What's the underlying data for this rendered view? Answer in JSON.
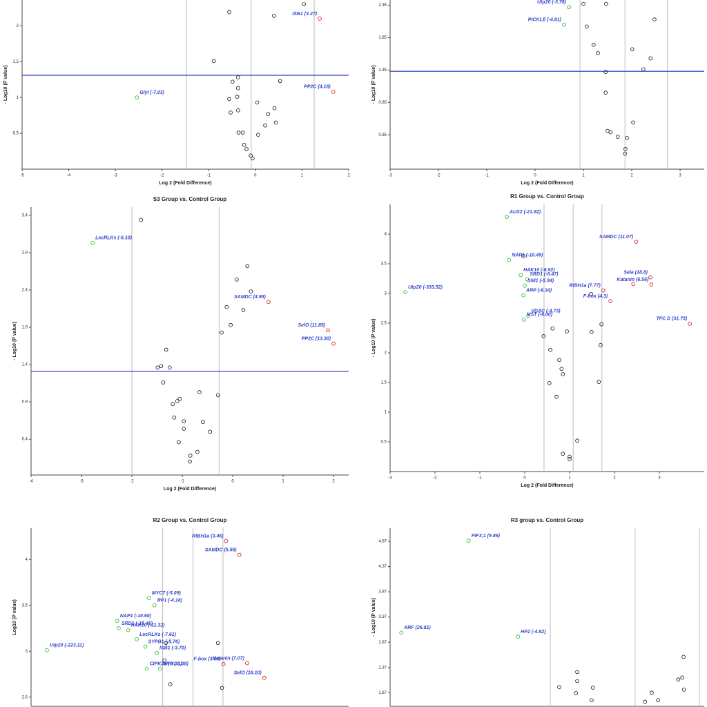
{
  "chart_data": [
    {
      "type": "scatter",
      "xlabel": "Log 2 (Fold Difference)",
      "ylabel": "- Log10 (P value)",
      "xlim": [
        -5,
        2
      ],
      "ylim": [
        0,
        2.36
      ],
      "xticks": [
        -5,
        -4,
        -3,
        -2,
        -1,
        0,
        1,
        2
      ],
      "yticks": [
        0.5,
        1,
        1.5,
        2
      ],
      "vlines": [
        -1.48,
        -0.09,
        1.26
      ],
      "hline": 1.31,
      "points": [
        {
          "x": -0.56,
          "y": 2.19,
          "color": "black"
        },
        {
          "x": 0.4,
          "y": 2.14,
          "color": "black"
        },
        {
          "x": 1.04,
          "y": 2.3,
          "color": "black"
        },
        {
          "x": 1.38,
          "y": 2.1,
          "color": "red",
          "label": "ISB1 (3.27)"
        },
        {
          "x": -0.89,
          "y": 1.51,
          "color": "black"
        },
        {
          "x": -0.37,
          "y": 1.28,
          "color": "black"
        },
        {
          "x": -0.49,
          "y": 1.22,
          "color": "black"
        },
        {
          "x": -0.37,
          "y": 1.13,
          "color": "black"
        },
        {
          "x": -0.39,
          "y": 1.01,
          "color": "black"
        },
        {
          "x": 0.53,
          "y": 1.23,
          "color": "black"
        },
        {
          "x": -0.56,
          "y": 0.98,
          "color": "black"
        },
        {
          "x": 0.04,
          "y": 0.93,
          "color": "black"
        },
        {
          "x": -0.53,
          "y": 0.79,
          "color": "black"
        },
        {
          "x": -0.37,
          "y": 0.82,
          "color": "black"
        },
        {
          "x": 0.41,
          "y": 0.85,
          "color": "black"
        },
        {
          "x": 0.27,
          "y": 0.77,
          "color": "black"
        },
        {
          "x": 0.44,
          "y": 0.65,
          "color": "black"
        },
        {
          "x": 0.21,
          "y": 0.61,
          "color": "black"
        },
        {
          "x": -0.36,
          "y": 0.51,
          "color": "black"
        },
        {
          "x": -0.27,
          "y": 0.51,
          "color": "black"
        },
        {
          "x": 0.06,
          "y": 0.48,
          "color": "black"
        },
        {
          "x": -0.24,
          "y": 0.34,
          "color": "black"
        },
        {
          "x": -0.19,
          "y": 0.28,
          "color": "black"
        },
        {
          "x": -0.1,
          "y": 0.19,
          "color": "black"
        },
        {
          "x": -0.06,
          "y": 0.15,
          "color": "black"
        },
        {
          "x": -2.54,
          "y": 1.0,
          "color": "green",
          "label": "Glyl (-7.03)"
        },
        {
          "x": 1.67,
          "y": 1.08,
          "color": "red",
          "label": "PP2C (4.16)"
        }
      ]
    },
    {
      "type": "scatter",
      "xlabel": "Log 2 (Fold Difference)",
      "ylabel": "- Log10 (P value)",
      "xlim": [
        -3,
        3.5
      ],
      "ylim": [
        -0.18,
        2.43
      ],
      "xticks": [
        -3,
        -2,
        -1,
        0,
        1,
        2,
        3
      ],
      "yticks": [
        0.35,
        0.85,
        1.35,
        1.85,
        2.35
      ],
      "vlines": [
        0.93,
        1.86,
        2.74
      ],
      "hline": 1.33,
      "points": [
        {
          "x": 1.0,
          "y": 2.37,
          "color": "black"
        },
        {
          "x": 1.47,
          "y": 2.37,
          "color": "black"
        },
        {
          "x": 2.47,
          "y": 2.13,
          "color": "black"
        },
        {
          "x": 1.07,
          "y": 2.02,
          "color": "black"
        },
        {
          "x": 1.21,
          "y": 1.74,
          "color": "black"
        },
        {
          "x": 1.3,
          "y": 1.61,
          "color": "black"
        },
        {
          "x": 2.01,
          "y": 1.67,
          "color": "black"
        },
        {
          "x": 2.39,
          "y": 1.53,
          "color": "black"
        },
        {
          "x": 2.24,
          "y": 1.36,
          "color": "black"
        },
        {
          "x": 1.46,
          "y": 1.32,
          "color": "black"
        },
        {
          "x": 1.46,
          "y": 1.0,
          "color": "black"
        },
        {
          "x": 2.03,
          "y": 0.54,
          "color": "black"
        },
        {
          "x": 1.5,
          "y": 0.41,
          "color": "black"
        },
        {
          "x": 1.56,
          "y": 0.39,
          "color": "black"
        },
        {
          "x": 1.71,
          "y": 0.32,
          "color": "black"
        },
        {
          "x": 1.9,
          "y": 0.3,
          "color": "black"
        },
        {
          "x": 1.87,
          "y": 0.13,
          "color": "black"
        },
        {
          "x": 1.86,
          "y": 0.06,
          "color": "black"
        },
        {
          "x": 0.7,
          "y": 2.32,
          "color": "green",
          "label": "Utp20 (-3.78)"
        },
        {
          "x": 0.6,
          "y": 2.05,
          "color": "green",
          "label": "PICKLE (-4.61)"
        }
      ]
    },
    {
      "type": "scatter",
      "title": "S3 Group  vs. Control Group",
      "xlabel": "Log 2 (Fold Difference)",
      "ylabel": "- Log10 (P value)",
      "xlim": [
        -4,
        2.3
      ],
      "ylim": [
        -0.08,
        3.51
      ],
      "xticks": [
        -4,
        -3,
        -2,
        -1,
        0,
        1,
        2
      ],
      "yticks": [
        0.4,
        0.9,
        1.4,
        1.9,
        2.4,
        2.9,
        3.4
      ],
      "vlines": [
        -2,
        -0.27
      ],
      "hline": 1.31,
      "points": [
        {
          "x": -1.82,
          "y": 3.34,
          "color": "black"
        },
        {
          "x": 0.29,
          "y": 2.72,
          "color": "black"
        },
        {
          "x": 0.08,
          "y": 2.54,
          "color": "black"
        },
        {
          "x": 0.36,
          "y": 2.38,
          "color": "black"
        },
        {
          "x": -0.12,
          "y": 2.17,
          "color": "black"
        },
        {
          "x": 0.21,
          "y": 2.13,
          "color": "black"
        },
        {
          "x": -0.04,
          "y": 1.93,
          "color": "black"
        },
        {
          "x": -0.22,
          "y": 1.83,
          "color": "black"
        },
        {
          "x": -1.32,
          "y": 1.6,
          "color": "black"
        },
        {
          "x": -1.25,
          "y": 1.36,
          "color": "black"
        },
        {
          "x": -1.49,
          "y": 1.36,
          "color": "black"
        },
        {
          "x": -1.42,
          "y": 1.38,
          "color": "black"
        },
        {
          "x": -1.38,
          "y": 1.16,
          "color": "black"
        },
        {
          "x": -0.66,
          "y": 1.03,
          "color": "black"
        },
        {
          "x": -0.29,
          "y": 0.99,
          "color": "black"
        },
        {
          "x": -1.05,
          "y": 0.94,
          "color": "black"
        },
        {
          "x": -1.1,
          "y": 0.91,
          "color": "black"
        },
        {
          "x": -1.19,
          "y": 0.87,
          "color": "black"
        },
        {
          "x": -1.16,
          "y": 0.69,
          "color": "black"
        },
        {
          "x": -0.97,
          "y": 0.64,
          "color": "black"
        },
        {
          "x": -0.59,
          "y": 0.63,
          "color": "black"
        },
        {
          "x": -0.45,
          "y": 0.5,
          "color": "black"
        },
        {
          "x": -0.97,
          "y": 0.54,
          "color": "black"
        },
        {
          "x": -1.07,
          "y": 0.36,
          "color": "black"
        },
        {
          "x": -0.7,
          "y": 0.23,
          "color": "black"
        },
        {
          "x": -0.84,
          "y": 0.18,
          "color": "black"
        },
        {
          "x": -0.85,
          "y": 0.1,
          "color": "black"
        },
        {
          "x": -2.78,
          "y": 3.03,
          "color": "green",
          "label": "LecRLKs (-5.10)"
        },
        {
          "x": 0.71,
          "y": 2.24,
          "color": "red",
          "label": "SAMDC (4.95)"
        },
        {
          "x": 1.89,
          "y": 1.86,
          "color": "red",
          "label": "SelO (11.85)"
        },
        {
          "x": 2.0,
          "y": 1.68,
          "color": "red",
          "label": "PP2C (13.30)"
        }
      ]
    },
    {
      "type": "scatter",
      "title": "R1 Group  vs. Control Group",
      "xlabel": "Log 2 (Fold Difference)",
      "ylabel": "- Log10 (P value)",
      "xlim": [
        -3,
        4
      ],
      "ylim": [
        0,
        4.5
      ],
      "xticks": [
        -3,
        -2,
        -1,
        0,
        1,
        2,
        3
      ],
      "yticks": [
        0.5,
        1,
        1.5,
        2,
        2.5,
        3,
        3.5,
        4
      ],
      "vlines": [
        0.43,
        1.08,
        1.72
      ],
      "points": [
        {
          "x": -0.03,
          "y": 3.63,
          "color": "black"
        },
        {
          "x": 0.62,
          "y": 2.41,
          "color": "black"
        },
        {
          "x": 0.94,
          "y": 2.36,
          "color": "black"
        },
        {
          "x": 0.42,
          "y": 2.28,
          "color": "black"
        },
        {
          "x": 0.57,
          "y": 2.05,
          "color": "black"
        },
        {
          "x": 0.77,
          "y": 1.88,
          "color": "black"
        },
        {
          "x": 0.82,
          "y": 1.73,
          "color": "black"
        },
        {
          "x": 0.85,
          "y": 1.64,
          "color": "black"
        },
        {
          "x": 0.55,
          "y": 1.49,
          "color": "black"
        },
        {
          "x": 0.71,
          "y": 1.26,
          "color": "black"
        },
        {
          "x": 1.17,
          "y": 0.52,
          "color": "black"
        },
        {
          "x": 0.85,
          "y": 0.3,
          "color": "black"
        },
        {
          "x": 1.0,
          "y": 0.25,
          "color": "black"
        },
        {
          "x": 1.0,
          "y": 0.21,
          "color": "black"
        },
        {
          "x": 1.48,
          "y": 2.99,
          "color": "black"
        },
        {
          "x": 1.49,
          "y": 2.35,
          "color": "black"
        },
        {
          "x": 1.71,
          "y": 2.48,
          "color": "black"
        },
        {
          "x": 1.69,
          "y": 2.13,
          "color": "black"
        },
        {
          "x": 1.65,
          "y": 1.51,
          "color": "black"
        },
        {
          "x": -0.4,
          "y": 4.29,
          "color": "green",
          "label": "AUX2 (-21.62)"
        },
        {
          "x": -0.35,
          "y": 3.56,
          "color": "green",
          "label": "NAP1 (-10.49)"
        },
        {
          "x": -0.09,
          "y": 3.31,
          "color": "green",
          "label": "HAK10 (-6.92)"
        },
        {
          "x": 0.05,
          "y": 3.24,
          "color": "green",
          "label": "SRD1 (-6.47)"
        },
        {
          "x": 0.0,
          "y": 3.13,
          "color": "green",
          "label": "SNI1 (-5.94)"
        },
        {
          "x": -0.03,
          "y": 2.97,
          "color": "green",
          "label": "ARP (-6.34)"
        },
        {
          "x": 0.08,
          "y": 2.62,
          "color": "green",
          "label": "VDAC (-4.73)"
        },
        {
          "x": -0.02,
          "y": 2.56,
          "color": "green",
          "label": "MST (-6.00)"
        },
        {
          "x": -2.66,
          "y": 3.02,
          "color": "green",
          "label": "Utp20 (-333.52)"
        },
        {
          "x": 2.48,
          "y": 3.87,
          "color": "red",
          "label": "SAMDC (11.07)"
        },
        {
          "x": 2.8,
          "y": 3.27,
          "color": "red",
          "label": "Sela (18.8)"
        },
        {
          "x": 2.82,
          "y": 3.15,
          "color": "red",
          "label": "Katanin (6.56)"
        },
        {
          "x": 1.75,
          "y": 3.05,
          "color": "red",
          "label": "RtBH1a (7.77)"
        },
        {
          "x": 1.91,
          "y": 2.87,
          "color": "red",
          "label": "F-box (4.3)"
        },
        {
          "x": 3.68,
          "y": 2.49,
          "color": "red",
          "label": "TFC D (31.75)"
        },
        {
          "x": 2.42,
          "y": 3.16,
          "color": "red"
        }
      ]
    },
    {
      "type": "scatter",
      "title": "R2 Group  vs. Control Group",
      "ylabel": "Log10 (P value)",
      "xlim": [
        -4,
        3
      ],
      "ylim": [
        2.4,
        4.34
      ],
      "yticks": [
        2.5,
        3,
        3.5,
        4
      ],
      "vlines": [
        -1.1,
        -0.43,
        0.23
      ],
      "points": [
        {
          "x": -1.03,
          "y": 3.09,
          "color": "black"
        },
        {
          "x": 0.12,
          "y": 3.09,
          "color": "black"
        },
        {
          "x": -0.93,
          "y": 2.64,
          "color": "black"
        },
        {
          "x": 0.21,
          "y": 2.6,
          "color": "black"
        },
        {
          "x": -1.06,
          "y": 2.9,
          "color": "black"
        },
        {
          "x": -3.65,
          "y": 3.01,
          "color": "green",
          "label": "Utp20 (-223.11)"
        },
        {
          "x": -2.1,
          "y": 3.33,
          "color": "green",
          "label": "NAP1 (-10.60)"
        },
        {
          "x": -2.07,
          "y": 3.25,
          "color": "green",
          "label": "SRD1 (-15.46)"
        },
        {
          "x": -1.86,
          "y": 3.23,
          "color": "green",
          "label": "HAK10 (-11.32)"
        },
        {
          "x": -1.67,
          "y": 3.13,
          "color": "green",
          "label": "LecRLKs (-7.61)"
        },
        {
          "x": -1.48,
          "y": 3.05,
          "color": "green",
          "label": "SYPB1 (-5.76)"
        },
        {
          "x": -1.23,
          "y": 2.98,
          "color": "green",
          "label": "ISB1 (-3.70)"
        },
        {
          "x": -1.45,
          "y": 2.81,
          "color": "green",
          "label": "CIPK20 (-3.31)"
        },
        {
          "x": -1.16,
          "y": 2.81,
          "color": "green",
          "label": "ARP (-3.38)"
        },
        {
          "x": -1.4,
          "y": 3.58,
          "color": "green",
          "label": "MYC7 (-5.09)"
        },
        {
          "x": -1.28,
          "y": 3.5,
          "color": "green",
          "label": "RP1 (-4.18)"
        },
        {
          "x": 0.3,
          "y": 4.2,
          "color": "red",
          "label": "RtBH1a (3.46)"
        },
        {
          "x": 0.59,
          "y": 4.05,
          "color": "red",
          "label": "SAMDC (5.56)"
        },
        {
          "x": 0.24,
          "y": 2.86,
          "color": "red",
          "label": "F-box (3.03)"
        },
        {
          "x": 0.76,
          "y": 2.87,
          "color": "red",
          "label": "Katanin (7.07)"
        },
        {
          "x": 1.14,
          "y": 2.71,
          "color": "red",
          "label": "SelO (16.10)"
        }
      ]
    },
    {
      "type": "scatter",
      "title": "R3 group  vs. Control Group",
      "ylabel": "- Log10 (P value)",
      "xlim": [
        -4,
        3
      ],
      "ylim": [
        1.6,
        5.13
      ],
      "yticks": [
        1.87,
        2.37,
        2.87,
        3.37,
        3.87,
        4.37,
        4.87
      ],
      "vlines": [
        -0.43,
        1.46,
        2.89
      ],
      "points": [
        {
          "x": 2.54,
          "y": 2.58,
          "color": "black"
        },
        {
          "x": 2.51,
          "y": 2.17,
          "color": "black"
        },
        {
          "x": 2.42,
          "y": 2.13,
          "color": "black"
        },
        {
          "x": 2.55,
          "y": 1.93,
          "color": "black"
        },
        {
          "x": 0.17,
          "y": 2.28,
          "color": "black"
        },
        {
          "x": 0.17,
          "y": 2.1,
          "color": "black"
        },
        {
          "x": -0.23,
          "y": 1.98,
          "color": "black"
        },
        {
          "x": 0.52,
          "y": 1.97,
          "color": "black"
        },
        {
          "x": 0.14,
          "y": 1.86,
          "color": "black"
        },
        {
          "x": 1.83,
          "y": 1.87,
          "color": "black"
        },
        {
          "x": 0.49,
          "y": 1.72,
          "color": "black"
        },
        {
          "x": 1.97,
          "y": 1.72,
          "color": "black"
        },
        {
          "x": 1.68,
          "y": 1.69,
          "color": "black"
        },
        {
          "x": -2.25,
          "y": 4.88,
          "color": "green",
          "label": "PIF3;1 (9.86)"
        },
        {
          "x": -3.75,
          "y": 3.06,
          "color": "green",
          "label": "ARF (26.81)"
        },
        {
          "x": -1.15,
          "y": 2.98,
          "color": "green",
          "label": "HP2 (-4.82)"
        }
      ]
    }
  ]
}
